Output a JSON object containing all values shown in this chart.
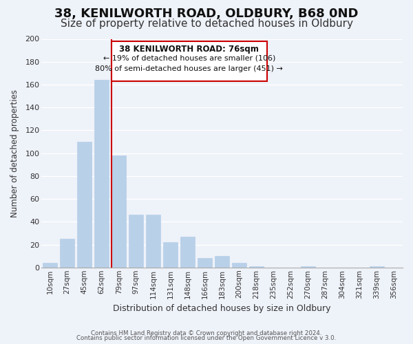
{
  "title": "38, KENILWORTH ROAD, OLDBURY, B68 0ND",
  "subtitle": "Size of property relative to detached houses in Oldbury",
  "xlabel": "Distribution of detached houses by size in Oldbury",
  "ylabel": "Number of detached properties",
  "bar_labels": [
    "10sqm",
    "27sqm",
    "45sqm",
    "62sqm",
    "79sqm",
    "97sqm",
    "114sqm",
    "131sqm",
    "148sqm",
    "166sqm",
    "183sqm",
    "200sqm",
    "218sqm",
    "235sqm",
    "252sqm",
    "270sqm",
    "287sqm",
    "304sqm",
    "321sqm",
    "339sqm",
    "356sqm"
  ],
  "bar_values": [
    4,
    25,
    110,
    164,
    98,
    46,
    46,
    22,
    27,
    8,
    10,
    4,
    1,
    0,
    0,
    1,
    0,
    0,
    0,
    1,
    0
  ],
  "bar_color": "#b8d0e8",
  "bar_edge_color": "#b8d0e8",
  "highlight_bar_index": 4,
  "highlight_color": "#cc0000",
  "ylim": [
    0,
    200
  ],
  "yticks": [
    0,
    20,
    40,
    60,
    80,
    100,
    120,
    140,
    160,
    180,
    200
  ],
  "annotation_title": "38 KENILWORTH ROAD: 76sqm",
  "annotation_line1": "← 19% of detached houses are smaller (106)",
  "annotation_line2": "80% of semi-detached houses are larger (451) →",
  "annotation_box_color": "#ffffff",
  "annotation_box_edge": "#cc0000",
  "footer_line1": "Contains HM Land Registry data © Crown copyright and database right 2024.",
  "footer_line2": "Contains public sector information licensed under the Open Government Licence v 3.0.",
  "background_color": "#eef2f9",
  "grid_color": "#ffffff",
  "title_fontsize": 13,
  "subtitle_fontsize": 11
}
